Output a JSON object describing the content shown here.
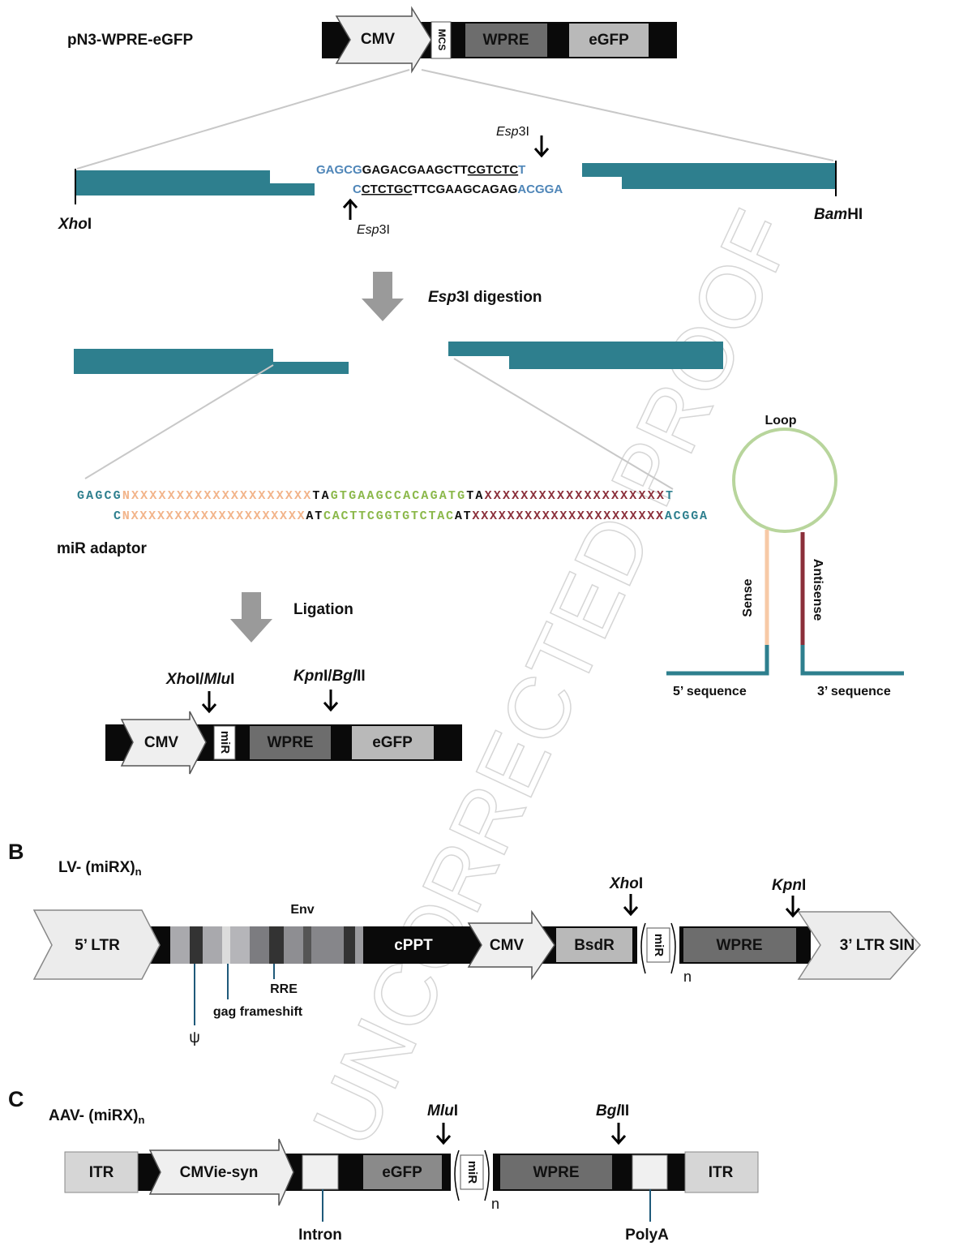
{
  "panel_a": {
    "construct_name": "pN3-WPRE-eGFP",
    "vector": {
      "promoter": "CMV",
      "mcs": "MCS",
      "wpre": "WPRE",
      "egfp": "eGFP"
    },
    "cloning_site": {
      "top_strand": {
        "overhang": "GAGCG",
        "spacer": "GAGACGAAGCTT",
        "esp3i_site": "CGTCTC",
        "end": "T"
      },
      "bottom_strand": {
        "end": "C",
        "esp3i_site": "CTCTGC",
        "spacer": "TTCGAAGCAGAG",
        "overhang": "ACGGA"
      },
      "esp3i_top": {
        "italic": "Esp",
        "roman": "3I"
      },
      "esp3i_bottom": {
        "italic": "Esp",
        "roman": "3I"
      },
      "left_site": {
        "italic": "Xho",
        "roman": "I"
      },
      "right_site": {
        "italic": "Bam",
        "roman": "HI"
      }
    },
    "digestion_step": {
      "italic": "Esp",
      "roman": "3I digestion"
    },
    "mir_adaptor": {
      "label": "miR adaptor",
      "top_strand": {
        "overhang": "GAGCG",
        "sense": "NXXXXXXXXXXXXXXXXXXXX",
        "linker_1": "TA",
        "loop": "GTGAAGCCACAGATG",
        "linker_2": "TA",
        "antisense": "XXXXXXXXXXXXXXXXXXXX",
        "end": "T"
      },
      "bottom_strand": {
        "end": "C",
        "sense": "NXXXXXXXXXXXXXXXXXXXX",
        "linker_1": "AT",
        "loop": "CACTTCGGTGTCTAC",
        "linker_2": "AT",
        "antisense": "XXXXXXXXXXXXXXXXXXXXXX",
        "overhang": "ACGGA"
      }
    },
    "hairpin": {
      "loop": "Loop",
      "sense": "Sense",
      "antisense": "Antisense",
      "five_prime": "5’ sequence",
      "three_prime": "3’ sequence"
    },
    "ligation_step": "Ligation",
    "final_vector": {
      "site_1": {
        "italic_1": "Xho",
        "roman_1": "I/",
        "italic_2": "Mlu",
        "roman_2": "I"
      },
      "site_2": {
        "italic_1": "Kpn",
        "roman_1": "I/",
        "italic_2": "Bgl",
        "roman_2": "II"
      },
      "promoter": "CMV",
      "insert": "miR",
      "wpre": "WPRE",
      "egfp": "eGFP"
    }
  },
  "panel_b": {
    "letter": "B",
    "title": {
      "text": "LV- (miRX)",
      "subscript": "n"
    },
    "ltr_5": "5’ LTR",
    "env": "Env",
    "cppt": "cPPT",
    "promoter": "CMV",
    "bsdr": "BsdR",
    "insert": "miR",
    "repeat": "n",
    "wpre": "WPRE",
    "ltr_3": "3’ LTR SIN",
    "site_1": {
      "italic": "Xho",
      "roman": "I"
    },
    "site_2": {
      "italic": "Kpn",
      "roman": "I"
    },
    "psi": "ψ",
    "gag": "gag frameshift",
    "rre": "RRE"
  },
  "panel_c": {
    "letter": "C",
    "title": {
      "text": "AAV- (miRX)",
      "subscript": "n"
    },
    "itr_left": "ITR",
    "promoter": "CMVie-syn",
    "egfp": "eGFP",
    "insert": "miR",
    "repeat": "n",
    "wpre": "WPRE",
    "itr_right": "ITR",
    "site_1": {
      "italic": "Mlu",
      "roman": "I"
    },
    "site_2": {
      "italic": "Bgl",
      "roman": "II"
    },
    "intron": "Intron",
    "polya": "PolyA"
  },
  "watermark": "UNCORRECTED PROOF"
}
